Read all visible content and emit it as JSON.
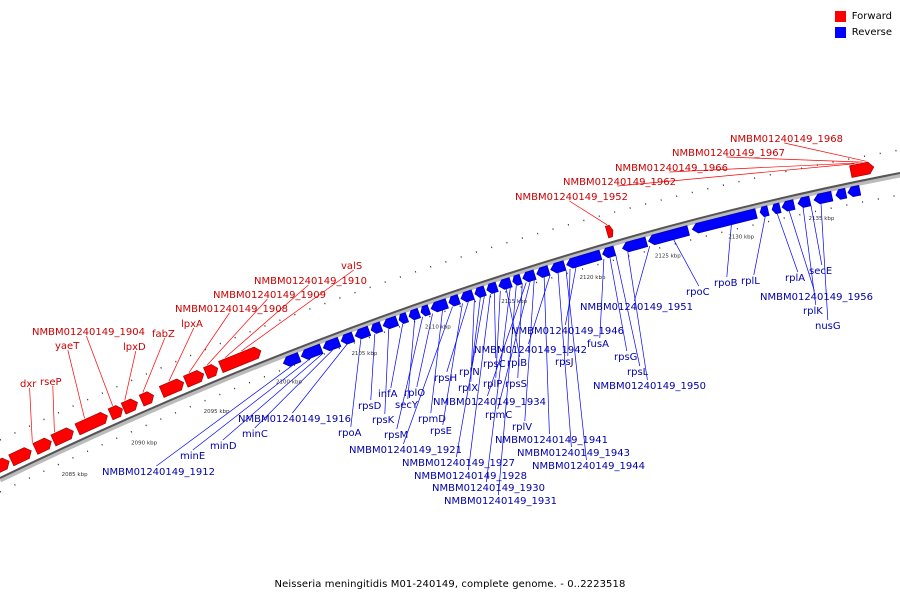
{
  "legend": {
    "forward": {
      "label": "Forward",
      "color": "#ff0000"
    },
    "reverse": {
      "label": "Reverse",
      "color": "#0000ff"
    }
  },
  "caption": "Neisseria meningitidis M01-240149, complete genome. - 0..2223518",
  "ticks": [
    "2085 kbp",
    "2090 kbp",
    "2095 kbp",
    "2100 kbp",
    "2105 kbp",
    "2110 kbp",
    "2115 kbp",
    "2120 kbp",
    "2125 kbp",
    "2130 kbp",
    "2135 kbp"
  ],
  "forward_genes": [
    "dxr",
    "rseP",
    "yaeT",
    "NMBM01240149_1904",
    "lpxD",
    "fabZ",
    "lpxA",
    "NMBM01240149_1908",
    "NMBM01240149_1909",
    "NMBM01240149_1910",
    "valS",
    "NMBM01240149_1952",
    "NMBM01240149_1962",
    "NMBM01240149_1966",
    "NMBM01240149_1967",
    "NMBM01240149_1968"
  ],
  "reverse_genes": [
    "NMBM01240149_1912",
    "minE",
    "minD",
    "minC",
    "NMBM01240149_1916",
    "rpoA",
    "rpsD",
    "rpsK",
    "infA",
    "secY",
    "rpsM",
    "rplO",
    "rpmD",
    "NMBM01240149_1921",
    "rpsE",
    "rpsH",
    "rplX",
    "rplN",
    "NMBM01240149_1927",
    "NMBM01240149_1928",
    "rpsC",
    "rplP",
    "rplB",
    "NMBM01240149_1930",
    "NMBM01240149_1931",
    "rpsS",
    "NMBM01240149_1934",
    "rpmC",
    "rplV",
    "NMBM01240149_1941",
    "NMBM01240149_1942",
    "NMBM01240149_1943",
    "NMBM01240149_1944",
    "rpsJ",
    "NMBM01240149_1946",
    "fusA",
    "rpsG",
    "rpsL",
    "NMBM01240149_1950",
    "NMBM01240149_1951",
    "rpoC",
    "rpoB",
    "rplL",
    "rplA",
    "NMBM01240149_1956",
    "rplK",
    "secE",
    "nusG"
  ]
}
